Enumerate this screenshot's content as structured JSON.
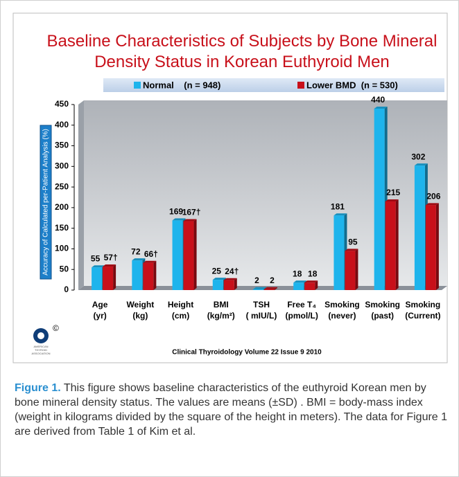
{
  "chart_data": {
    "type": "bar",
    "title": "Baseline Characteristics of Subjects by Bone Mineral\nDensity Status in Korean Euthyroid Men",
    "categories": [
      "Age\n(yr)",
      "Weight\n(kg)",
      "Height\n(cm)",
      "BMI\n(kg/m²)",
      "TSH\n( mIU/L)",
      "Free T₄\n(pmol/L)",
      "Smoking\n(never)",
      "Smoking\n(past)",
      "Smoking\n(Current)"
    ],
    "series": [
      {
        "name": "Normal    (n = 948)",
        "color": "#1eb4ec",
        "values": [
          55,
          72,
          169,
          25,
          2,
          18,
          181,
          440,
          302
        ]
      },
      {
        "name": "Lower BMD  (n = 530)",
        "color": "#c8101a",
        "values": [
          57,
          66,
          167,
          24,
          2,
          18,
          95,
          215,
          206
        ],
        "value_labels": [
          "57†",
          "66†",
          "167†",
          "24†",
          "2",
          "18",
          "95",
          "215",
          "206"
        ]
      }
    ],
    "y_axis_label": "Accuracy of Calculated per-Patient Analysis (%)",
    "ylim": [
      0,
      450
    ],
    "yticks": [
      0,
      50,
      100,
      150,
      200,
      250,
      300,
      350,
      400,
      450
    ],
    "source": "Clinical Thyroidology Volume 22 Issue 9 2010",
    "logo": {
      "lines": [
        "AMERICAN",
        "THYROID",
        "ASSOCIATION"
      ],
      "mark": "©"
    }
  },
  "caption": {
    "label": "Figure 1.",
    "text": "This figure shows baseline characteristics of the euthyroid Korean men by bone mineral density status. The values are means (±SD) . BMI = body-mass index (weight in kilograms divided by the square of the height in meters). The data for Figure 1 are derived from Table 1 of Kim et al."
  }
}
